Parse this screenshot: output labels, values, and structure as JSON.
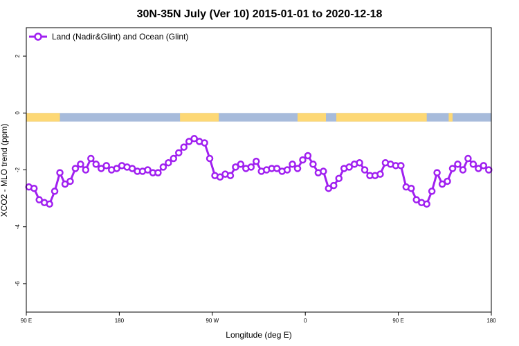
{
  "chart_data": {
    "type": "line",
    "title": "30N-35N July (Ver 10)   2015-01-01 to 2020-12-18",
    "xlabel": "Longitude (deg E)",
    "ylabel": "XCO2 - MLO trend (ppm)",
    "xlim": [
      90,
      450
    ],
    "ylim": [
      -7,
      3
    ],
    "x_ticks": [
      {
        "value": 90,
        "label": "90 E"
      },
      {
        "value": 162,
        "label": "180"
      },
      {
        "value": 234,
        "label": "90 W"
      },
      {
        "value": 306,
        "label": "0"
      },
      {
        "value": 378,
        "label": "90 E"
      },
      {
        "value": 450,
        "label": "180"
      }
    ],
    "y_ticks": [
      {
        "value": 2,
        "label": "2"
      },
      {
        "value": 0,
        "label": "0"
      },
      {
        "value": -2,
        "label": "-2"
      },
      {
        "value": -4,
        "label": "-4"
      },
      {
        "value": -6,
        "label": "-6"
      }
    ],
    "legend_position": "top-left",
    "grid": false,
    "land_mask": {
      "y_range": [
        -0.3,
        0
      ],
      "ocean_color": "#a7bbdb",
      "land_color": "#fdd875",
      "land_segments": [
        [
          90,
          116
        ],
        [
          209,
          239
        ],
        [
          300,
          322
        ],
        [
          330,
          400
        ],
        [
          417,
          420
        ]
      ]
    },
    "series": [
      {
        "name": "Land (Nadir&Glint) and Ocean (Glint)",
        "color": "#a020f0",
        "x": [
          92,
          96,
          100,
          104,
          108,
          112,
          116,
          120,
          124,
          128,
          132,
          136,
          140,
          144,
          148,
          152,
          156,
          160,
          164,
          168,
          172,
          176,
          180,
          184,
          188,
          192,
          196,
          200,
          204,
          208,
          212,
          216,
          220,
          224,
          228,
          232,
          236,
          240,
          244,
          248,
          252,
          256,
          260,
          264,
          268,
          272,
          276,
          280,
          284,
          288,
          292,
          296,
          300,
          304,
          308,
          312,
          316,
          320,
          324,
          328,
          332,
          336,
          340,
          344,
          348,
          352,
          356,
          360,
          364,
          368,
          372,
          376,
          380,
          384,
          388,
          392,
          396,
          400,
          404,
          408,
          412,
          416,
          420,
          424,
          428,
          432,
          436,
          440,
          444,
          448
        ],
        "y": [
          -2.6,
          -2.65,
          -3.05,
          -3.15,
          -3.2,
          -2.75,
          -2.1,
          -2.5,
          -2.4,
          -1.95,
          -1.8,
          -2.0,
          -1.6,
          -1.8,
          -1.95,
          -1.85,
          -2.0,
          -1.95,
          -1.85,
          -1.9,
          -1.95,
          -2.05,
          -2.05,
          -2.0,
          -2.1,
          -2.1,
          -1.9,
          -1.75,
          -1.6,
          -1.4,
          -1.2,
          -1.0,
          -0.9,
          -1.0,
          -1.05,
          -1.6,
          -2.2,
          -2.25,
          -2.15,
          -2.2,
          -1.9,
          -1.8,
          -1.95,
          -1.9,
          -1.7,
          -2.05,
          -2.0,
          -1.95,
          -1.95,
          -2.05,
          -2.0,
          -1.8,
          -1.95,
          -1.65,
          -1.5,
          -1.8,
          -2.1,
          -2.05,
          -2.65,
          -2.55,
          -2.3,
          -1.95,
          -1.9,
          -1.8,
          -1.75,
          -2.0,
          -2.2,
          -2.2,
          -2.15,
          -1.75,
          -1.8,
          -1.85,
          -1.85,
          -2.6,
          -2.65,
          -3.05,
          -3.15,
          -3.2,
          -2.75,
          -2.1,
          -2.5,
          -2.4,
          -1.95,
          -1.8,
          -2.0,
          -1.6,
          -1.8,
          -1.95,
          -1.85,
          -2.0
        ]
      }
    ]
  }
}
